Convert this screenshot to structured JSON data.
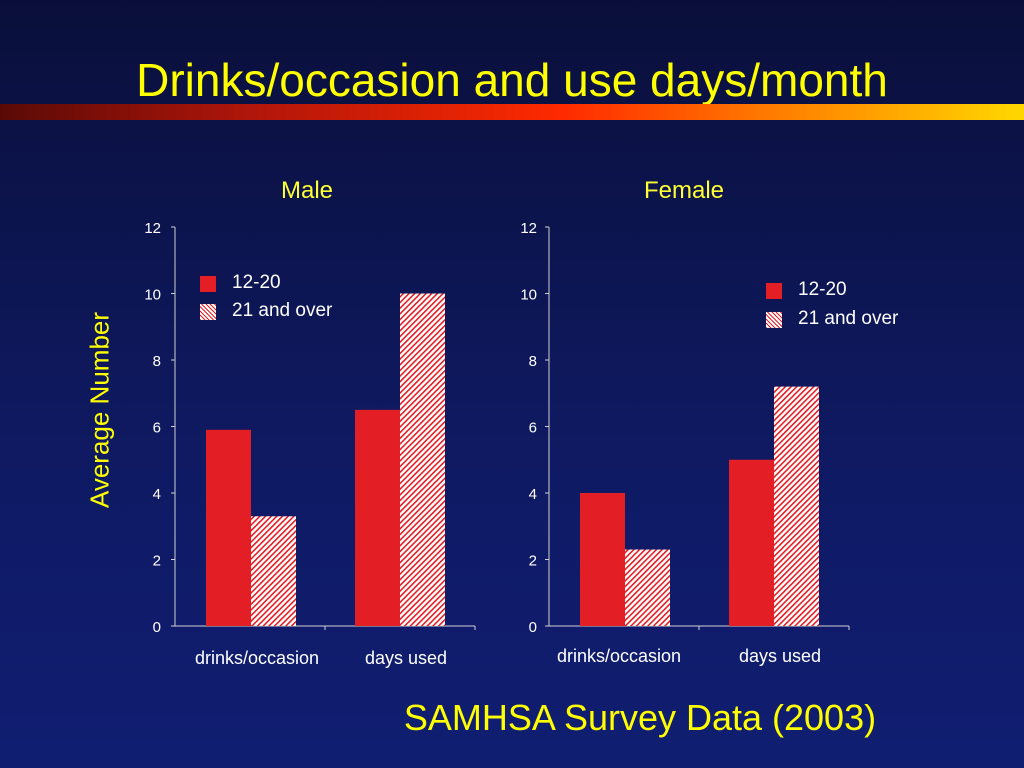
{
  "slide": {
    "title": "Drinks/occasion and use days/month",
    "ylabel": "Average Number",
    "footer": "SAMHSA Survey Data (2003)"
  },
  "colors": {
    "solid": "#e31e24",
    "hatch_fg": "#e31e24",
    "hatch_bg": "#ffffff",
    "axis": "#d0d0d0"
  },
  "chart_data": [
    {
      "type": "bar",
      "title": "Male",
      "categories": [
        "drinks/occasion",
        "days used"
      ],
      "series": [
        {
          "name": "12-20",
          "values": [
            5.9,
            6.5
          ]
        },
        {
          "name": "21 and over",
          "values": [
            3.3,
            10.0
          ]
        }
      ],
      "ylabel": "Average Number",
      "ylim": [
        0,
        12
      ],
      "yticks": [
        "0",
        "2",
        "4",
        "6",
        "8",
        "10",
        "12"
      ],
      "grid": false,
      "legend_position": "top-left"
    },
    {
      "type": "bar",
      "title": "Female",
      "categories": [
        "drinks/occasion",
        "days used"
      ],
      "series": [
        {
          "name": "12-20",
          "values": [
            4.0,
            5.0
          ]
        },
        {
          "name": "21 and over",
          "values": [
            2.3,
            7.2
          ]
        }
      ],
      "ylabel": "",
      "ylim": [
        0,
        12
      ],
      "yticks": [
        "0",
        "2",
        "4",
        "6",
        "8",
        "10",
        "12"
      ],
      "grid": false,
      "legend_position": "top-right"
    }
  ]
}
